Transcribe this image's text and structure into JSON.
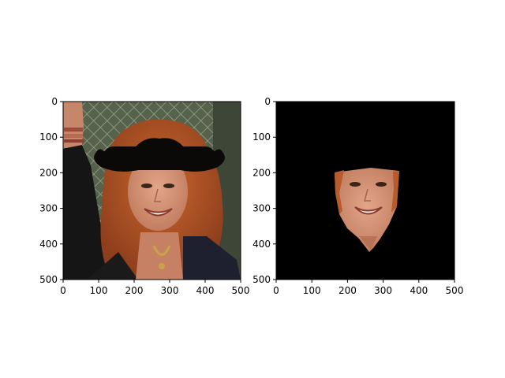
{
  "chart_data": [
    {
      "type": "image",
      "title": "",
      "xlabel": "",
      "ylabel": "",
      "xlim": [
        0,
        500
      ],
      "ylim": [
        500,
        0
      ],
      "xticks": [
        0,
        100,
        200,
        300,
        400,
        500
      ],
      "yticks": [
        0,
        100,
        200,
        300,
        400,
        500
      ],
      "content": "photo of a smiling red-haired woman with a black mustache overlay"
    },
    {
      "type": "image",
      "title": "",
      "xlabel": "",
      "ylabel": "",
      "xlim": [
        0,
        500
      ],
      "ylim": [
        500,
        0
      ],
      "xticks": [
        0,
        100,
        200,
        300,
        400,
        500
      ],
      "yticks": [
        0,
        100,
        200,
        300,
        400,
        500
      ],
      "content": "face region cut out on black background"
    }
  ],
  "colors": {
    "hair": "#b8582a",
    "skin": "#d9967a",
    "mustache": "#0b0808",
    "jacket": "#151515",
    "background_fence": "#4d5a45",
    "mask_background": "#000000"
  }
}
